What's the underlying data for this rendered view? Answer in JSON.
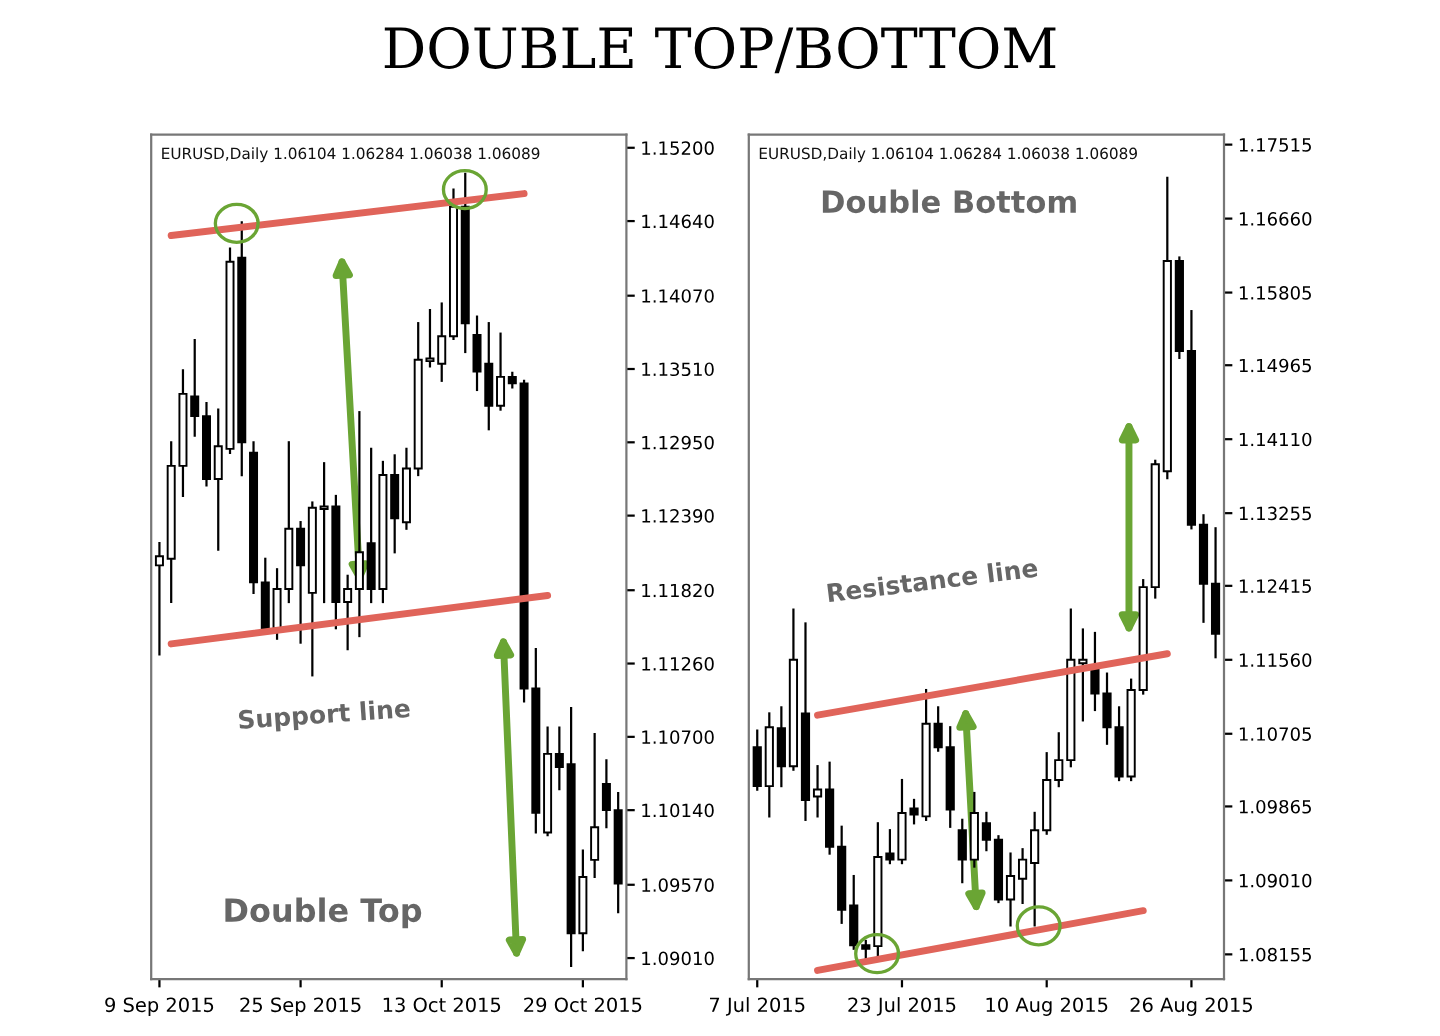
{
  "chart_data": [
    {
      "type": "candlestick",
      "title": "DOUBLE TOP/BOTTOM",
      "categories": [
        "9 Sep 2015",
        null,
        null,
        null,
        null,
        null,
        null,
        null,
        null,
        null,
        null,
        null,
        "25 Sep 2015",
        null,
        null,
        null,
        null,
        null,
        null,
        null,
        null,
        null,
        null,
        null,
        "13 Oct 2015",
        null,
        null,
        null,
        null,
        null,
        null,
        null,
        null,
        null,
        null,
        null,
        "29 Oct 2015",
        null,
        null,
        null
      ],
      "ohlc": [
        [
          1.1201,
          1.1218,
          1.1133,
          1.1208
        ],
        [
          1.1206,
          1.1295,
          1.1173,
          1.1277
        ],
        [
          1.1277,
          1.135,
          1.1254,
          1.1332
        ],
        [
          1.133,
          1.1373,
          1.13,
          1.1315
        ],
        [
          1.1315,
          1.1325,
          1.1262,
          1.1267
        ],
        [
          1.1267,
          1.132,
          1.1213,
          1.1292
        ],
        [
          1.129,
          1.1443,
          1.1287,
          1.1433
        ],
        [
          1.1436,
          1.1463,
          1.127,
          1.1295
        ],
        [
          1.1287,
          1.1295,
          1.118,
          1.1188
        ],
        [
          1.1188,
          1.1206,
          1.1149,
          1.115
        ],
        [
          1.1153,
          1.1198,
          1.1145,
          1.1183
        ],
        [
          1.1183,
          1.1295,
          1.1173,
          1.1229
        ],
        [
          1.1229,
          1.1234,
          1.1142,
          1.1201
        ],
        [
          1.118,
          1.1249,
          1.1117,
          1.1245
        ],
        [
          1.1244,
          1.1279,
          1.1173,
          1.1246
        ],
        [
          1.1246,
          1.1254,
          1.1153,
          1.1173
        ],
        [
          1.1173,
          1.1193,
          1.1137,
          1.1183
        ],
        [
          1.1183,
          1.1318,
          1.1147,
          1.1211
        ],
        [
          1.1218,
          1.129,
          1.1173,
          1.1183
        ],
        [
          1.1183,
          1.128,
          1.1173,
          1.127
        ],
        [
          1.127,
          1.1285,
          1.1211,
          1.1237
        ],
        [
          1.1234,
          1.129,
          1.1229,
          1.1275
        ],
        [
          1.1275,
          1.1386,
          1.127,
          1.1358
        ],
        [
          1.1357,
          1.1396,
          1.1353,
          1.1359
        ],
        [
          1.1355,
          1.1401,
          1.1342,
          1.1376
        ],
        [
          1.1376,
          1.1488,
          1.1374,
          1.1475
        ],
        [
          1.1475,
          1.15,
          1.1364,
          1.1386
        ],
        [
          1.1377,
          1.1391,
          1.1335,
          1.1349
        ],
        [
          1.1355,
          1.1386,
          1.1305,
          1.1323
        ],
        [
          1.1323,
          1.1378,
          1.132,
          1.1345
        ],
        [
          1.1345,
          1.1348,
          1.1337,
          1.134
        ],
        [
          1.134,
          1.1342,
          1.1097,
          1.1107
        ],
        [
          1.1107,
          1.1137,
          1.0997,
          1.1012
        ],
        [
          1.0997,
          1.1077,
          1.0995,
          1.1057
        ],
        [
          1.1057,
          1.1077,
          1.103,
          1.1047
        ],
        [
          1.1049,
          1.1092,
          1.0895,
          1.092
        ],
        [
          1.092,
          1.0983,
          1.0907,
          1.0963
        ],
        [
          1.0976,
          1.1072,
          1.0963,
          1.1001
        ],
        [
          1.1034,
          1.1052,
          1.1001,
          1.1014
        ],
        [
          1.1014,
          1.1027,
          1.0936,
          1.0958
        ]
      ],
      "series": [
        {
          "type": "line",
          "color": "#e0645a",
          "values": [
            null,
            1.1453,
            null,
            null,
            null,
            null,
            null,
            null,
            null,
            null,
            null,
            null,
            null,
            null,
            null,
            null,
            null,
            null,
            null,
            null,
            null,
            null,
            null,
            null,
            null,
            null,
            null,
            null,
            null,
            null,
            null,
            1.1485,
            null,
            null,
            null,
            null,
            null,
            null,
            null,
            null
          ]
        },
        {
          "type": "line",
          "color": "#e0645a",
          "values": [
            null,
            1.1141,
            null,
            null,
            null,
            null,
            null,
            null,
            null,
            null,
            null,
            null,
            null,
            null,
            null,
            null,
            null,
            null,
            null,
            null,
            null,
            null,
            null,
            null,
            null,
            null,
            null,
            null,
            null,
            null,
            null,
            null,
            null,
            1.1178,
            null,
            null,
            null,
            null,
            null,
            null
          ]
        }
      ],
      "ylim": [
        1.0885,
        1.153
      ],
      "yticks": [
        {
          "value": 1.152,
          "label": "1.15200"
        },
        {
          "value": 1.1464,
          "label": "1.14640"
        },
        {
          "value": 1.1407,
          "label": "1.14070"
        },
        {
          "value": 1.1351,
          "label": "1.13510"
        },
        {
          "value": 1.1295,
          "label": "1.12950"
        },
        {
          "value": 1.1239,
          "label": "1.12390"
        },
        {
          "value": 1.1182,
          "label": "1.11820"
        },
        {
          "value": 1.1126,
          "label": "1.11260"
        },
        {
          "value": 1.107,
          "label": "1.10700"
        },
        {
          "value": 1.1014,
          "label": "1.10140"
        },
        {
          "value": 1.0957,
          "label": "1.09570"
        },
        {
          "value": 1.0901,
          "label": "1.09010"
        }
      ],
      "annotations": [
        "EURUSD,Daily 1.06104 1.06284 1.06038 1.06089",
        "Support line",
        "Double Top"
      ]
    },
    {
      "type": "candlestick",
      "categories": [
        "7 Jul 2015",
        null,
        null,
        null,
        null,
        null,
        null,
        null,
        null,
        null,
        null,
        null,
        "23 Jul 2015",
        null,
        null,
        null,
        null,
        null,
        null,
        null,
        null,
        null,
        null,
        null,
        "10 Aug 2015",
        null,
        null,
        null,
        null,
        null,
        null,
        null,
        null,
        null,
        null,
        null,
        "26 Aug 2015",
        null,
        null
      ],
      "ohlc": [
        [
          1.1055,
          1.1074,
          1.1006,
          1.101
        ],
        [
          1.101,
          1.1094,
          1.0975,
          1.1078
        ],
        [
          1.1077,
          1.1101,
          1.101,
          1.1033
        ],
        [
          1.1033,
          1.1214,
          1.1029,
          1.1156
        ],
        [
          1.1094,
          1.1198,
          1.0971,
          1.0994
        ],
        [
          1.0998,
          1.1033,
          1.0975,
          1.1006
        ],
        [
          1.1006,
          1.1037,
          1.0932,
          1.094
        ],
        [
          1.094,
          1.0963,
          1.0852,
          1.0867
        ],
        [
          1.0872,
          1.0906,
          1.0822,
          1.0826
        ],
        [
          1.0826,
          1.0831,
          1.081,
          1.0822
        ],
        [
          1.0825,
          1.0967,
          1.0814,
          1.0928
        ],
        [
          1.0932,
          1.0959,
          1.0921,
          1.0925
        ],
        [
          1.0925,
          1.1017,
          1.0921,
          1.0979
        ],
        [
          1.0984,
          1.0994,
          1.0967,
          1.0977
        ],
        [
          1.0975,
          1.1121,
          1.0971,
          1.1082
        ],
        [
          1.1082,
          1.1101,
          1.1051,
          1.1055
        ],
        [
          1.1055,
          1.1078,
          1.0963,
          1.0983
        ],
        [
          1.0959,
          1.0971,
          1.0899,
          1.0925
        ],
        [
          1.0925,
          1.1002,
          1.0917,
          1.0979
        ],
        [
          1.0967,
          1.0979,
          1.0936,
          1.0948
        ],
        [
          1.0948,
          1.0952,
          1.0876,
          1.0879
        ],
        [
          1.0879,
          1.0932,
          1.0849,
          1.0906
        ],
        [
          1.0903,
          1.0937,
          1.0875,
          1.0925
        ],
        [
          1.0921,
          1.0979,
          1.0849,
          1.0959
        ],
        [
          1.0959,
          1.1048,
          1.0955,
          1.1017
        ],
        [
          1.1017,
          1.1071,
          1.101,
          1.104
        ],
        [
          1.104,
          1.1214,
          1.1033,
          1.1156
        ],
        [
          1.1152,
          1.1191,
          1.1086,
          1.1156
        ],
        [
          1.1148,
          1.1187,
          1.1098,
          1.1117
        ],
        [
          1.1117,
          1.114,
          1.1059,
          1.1078
        ],
        [
          1.1078,
          1.1101,
          1.1017,
          1.1021
        ],
        [
          1.1021,
          1.1133,
          1.1017,
          1.1121
        ],
        [
          1.1121,
          1.1248,
          1.1117,
          1.124
        ],
        [
          1.124,
          1.1386,
          1.1228,
          1.1382
        ],
        [
          1.1374,
          1.1713,
          1.1366,
          1.1617
        ],
        [
          1.1617,
          1.1621,
          1.1505,
          1.1513
        ],
        [
          1.1513,
          1.1559,
          1.1308,
          1.1312
        ],
        [
          1.1312,
          1.1323,
          1.12,
          1.1244
        ],
        [
          1.1244,
          1.1308,
          1.1159,
          1.1186
        ]
      ],
      "series": [
        {
          "type": "line",
          "color": "#e0645a",
          "values": [
            null,
            null,
            null,
            null,
            null,
            1.1092,
            null,
            null,
            null,
            null,
            null,
            null,
            null,
            null,
            null,
            null,
            null,
            null,
            null,
            null,
            null,
            null,
            null,
            null,
            null,
            null,
            null,
            null,
            null,
            null,
            null,
            null,
            null,
            null,
            1.1163,
            null,
            null,
            null,
            null
          ]
        },
        {
          "type": "line",
          "color": "#e0645a",
          "values": [
            null,
            null,
            null,
            null,
            null,
            1.0797,
            null,
            null,
            null,
            null,
            null,
            null,
            null,
            null,
            null,
            null,
            null,
            null,
            null,
            null,
            null,
            null,
            null,
            null,
            null,
            null,
            null,
            null,
            null,
            null,
            null,
            null,
            1.0866,
            null,
            null,
            null,
            null,
            null,
            null
          ]
        }
      ],
      "ylim": [
        1.0787,
        1.1763
      ],
      "yticks": [
        {
          "value": 1.17515,
          "label": "1.17515"
        },
        {
          "value": 1.1666,
          "label": "1.16660"
        },
        {
          "value": 1.15805,
          "label": "1.15805"
        },
        {
          "value": 1.14965,
          "label": "1.14965"
        },
        {
          "value": 1.1411,
          "label": "1.14110"
        },
        {
          "value": 1.13255,
          "label": "1.13255"
        },
        {
          "value": 1.12415,
          "label": "1.12415"
        },
        {
          "value": 1.1156,
          "label": "1.11560"
        },
        {
          "value": 1.10705,
          "label": "1.10705"
        },
        {
          "value": 1.09865,
          "label": "1.09865"
        },
        {
          "value": 1.0901,
          "label": "1.09010"
        },
        {
          "value": 1.08155,
          "label": "1.08155"
        }
      ],
      "annotations": [
        "EURUSD,Daily 1.06104 1.06284 1.06038 1.06089",
        "Double Bottom",
        "Resistance line"
      ]
    }
  ]
}
